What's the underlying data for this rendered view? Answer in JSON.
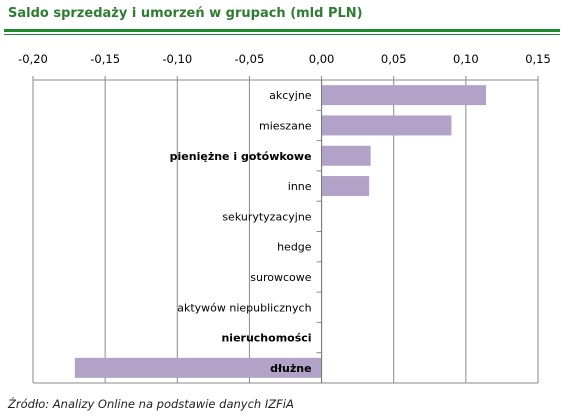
{
  "title": "Saldo sprzedaży i umorzeń w grupach (mld PLN)",
  "source": "Źródło: Analizy Online na podstawie danych IZFiA",
  "colors": {
    "bar": "#b3a2c7",
    "accent": "#1f8a2e",
    "title": "#2e7d32",
    "grid": "#888888"
  },
  "chart_data": {
    "type": "bar",
    "orientation": "horizontal",
    "xlim": [
      -0.2,
      0.15
    ],
    "xticks": [
      "-0,20",
      "-0,15",
      "-0,10",
      "-0,05",
      "0,00",
      "0,05",
      "0,10",
      "0,15"
    ],
    "xtick_values": [
      -0.2,
      -0.15,
      -0.1,
      -0.05,
      0,
      0.05,
      0.1,
      0.15
    ],
    "x_axis_position": "top",
    "grid": "vertical",
    "categories": [
      "akcyjne",
      "mieszane",
      "pieniężne i gotówkowe",
      "inne",
      "sekurytyzacyjne",
      "hedge",
      "surowcowe",
      "aktywów niepublicznych",
      "nieruchomości",
      "dłużne"
    ],
    "bold_categories": [
      "pieniężne i gotówkowe",
      "nieruchomości",
      "dłużne"
    ],
    "values": [
      0.114,
      0.09,
      0.034,
      0.033,
      0,
      0,
      0,
      0,
      0,
      -0.171
    ]
  }
}
